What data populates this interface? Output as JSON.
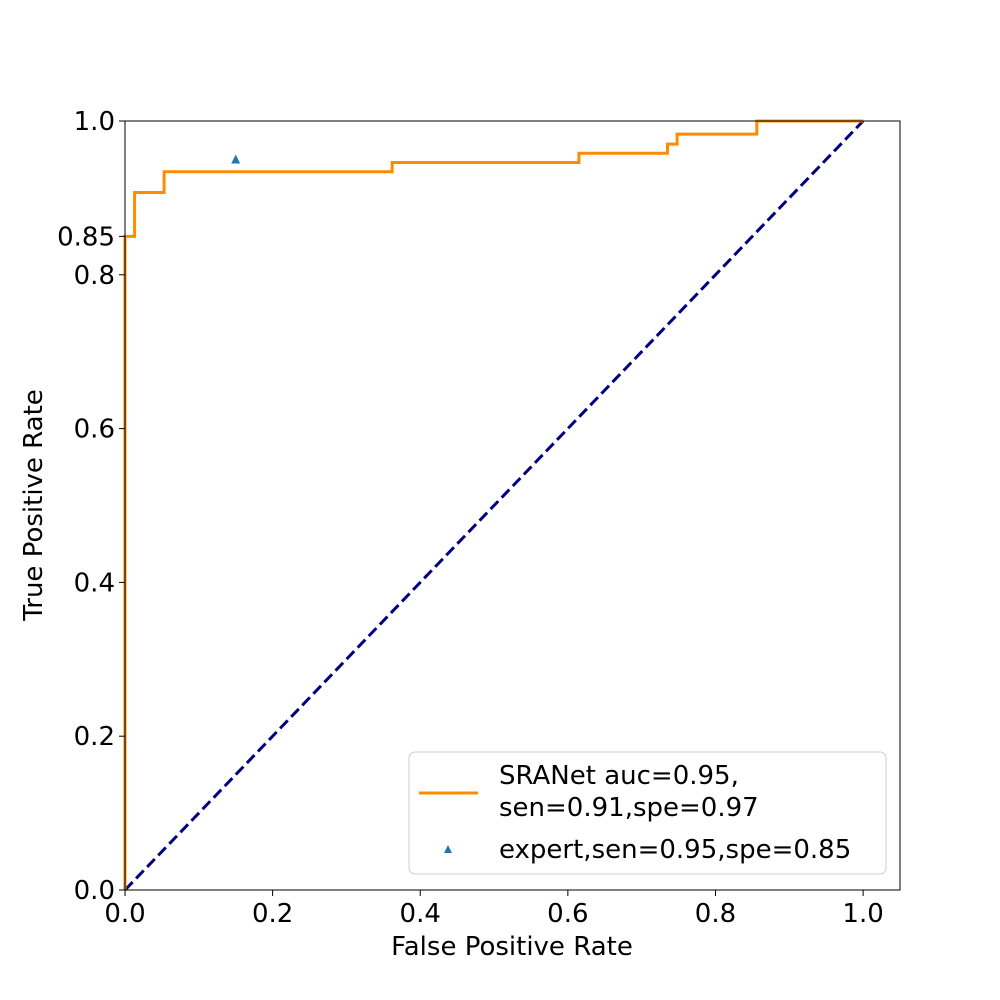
{
  "chart_data": {
    "type": "line",
    "xlabel": "False Positive Rate",
    "ylabel": "True Positive Rate",
    "xlim": [
      0.0,
      1.05
    ],
    "ylim": [
      0.0,
      1.0
    ],
    "x_ticks": [
      "0.0",
      "0.2",
      "0.4",
      "0.6",
      "0.8",
      "1.0"
    ],
    "y_ticks": [
      "0.0",
      "0.2",
      "0.4",
      "0.6",
      "0.8",
      "0.85",
      "1.0"
    ],
    "grid": false,
    "legend_position": "lower-right",
    "colors": {
      "roc": "#ff8c00",
      "diagonal": "#000080",
      "expert": "#1f77b4"
    },
    "series": [
      {
        "name": "SRANet auc=0.95,\nsen=0.91,spe=0.97",
        "legend_lines": [
          "SRANet auc=0.95,",
          "sen=0.91,spe=0.97"
        ],
        "kind": "step-line",
        "x": [
          0.0,
          0.0,
          0.0,
          0.013,
          0.013,
          0.053,
          0.053,
          0.362,
          0.362,
          0.615,
          0.615,
          0.735,
          0.735,
          0.748,
          0.748,
          0.856,
          0.856,
          1.0
        ],
        "y": [
          0.0,
          0.0,
          0.85,
          0.85,
          0.907,
          0.907,
          0.934,
          0.934,
          0.946,
          0.946,
          0.958,
          0.958,
          0.97,
          0.97,
          0.983,
          0.983,
          1.0,
          1.0
        ]
      },
      {
        "name": "expert,sen=0.95,spe=0.85",
        "legend_lines": [
          "expert,sen=0.95,spe=0.85"
        ],
        "kind": "scatter",
        "marker": "triangle",
        "x": [
          0.15
        ],
        "y": [
          0.95
        ]
      }
    ],
    "reference_line": {
      "x": [
        0.0,
        1.0
      ],
      "y": [
        0.0,
        1.0
      ],
      "style": "dashed"
    }
  }
}
